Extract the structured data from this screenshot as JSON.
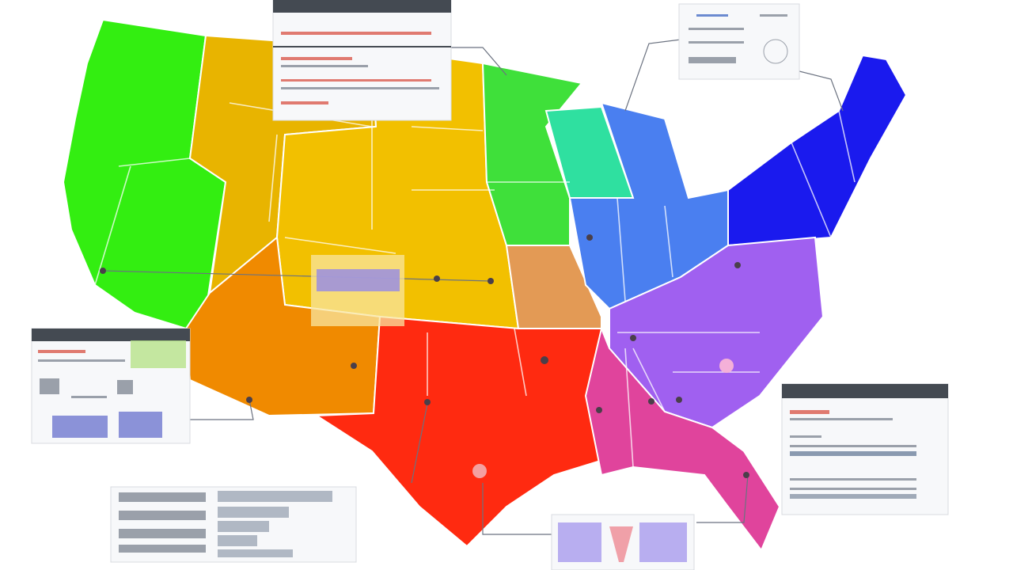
{
  "map": {
    "regions": [
      {
        "color": "#33ee11"
      },
      {
        "color": "#e8b400"
      },
      {
        "color": "#f2c000"
      },
      {
        "color": "#f08a00"
      },
      {
        "color": "#ff2a10"
      },
      {
        "color": "#3fe03a"
      },
      {
        "color": "#e39a55"
      },
      {
        "color": "#2fe0a0"
      },
      {
        "color": "#4a7ff0"
      },
      {
        "color": "#1a1aee"
      },
      {
        "color": "#a060f0"
      },
      {
        "color": "#e0449c"
      }
    ]
  }
}
